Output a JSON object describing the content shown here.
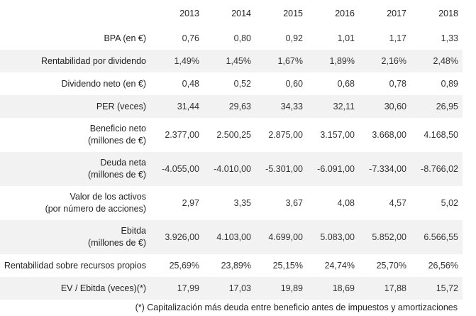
{
  "years": [
    "2013",
    "2014",
    "2015",
    "2016",
    "2017",
    "2018"
  ],
  "rows": [
    {
      "label": [
        "BPA (en €)"
      ],
      "values": [
        "0,76",
        "0,80",
        "0,92",
        "1,01",
        "1,17",
        "1,33"
      ]
    },
    {
      "label": [
        "Rentabilidad por dividendo"
      ],
      "values": [
        "1,49%",
        "1,45%",
        "1,67%",
        "1,89%",
        "2,16%",
        "2,48%"
      ]
    },
    {
      "label": [
        "Dividendo neto (en €)"
      ],
      "values": [
        "0,48",
        "0,52",
        "0,60",
        "0,68",
        "0,78",
        "0,89"
      ]
    },
    {
      "label": [
        "PER (veces)"
      ],
      "values": [
        "31,44",
        "29,63",
        "34,33",
        "32,11",
        "30,60",
        "26,95"
      ]
    },
    {
      "label": [
        "Beneficio neto",
        "(millones de €)"
      ],
      "values": [
        "2.377,00",
        "2.500,25",
        "2.875,00",
        "3.157,00",
        "3.668,00",
        "4.168,50"
      ]
    },
    {
      "label": [
        "Deuda neta",
        "(millones de €)"
      ],
      "values": [
        "-4.055,00",
        "-4.010,00",
        "-5.301,00",
        "-6.091,00",
        "-7.334,00",
        "-8.766,02"
      ]
    },
    {
      "label": [
        "Valor de los activos",
        "(por número de acciones)"
      ],
      "values": [
        "2,97",
        "3,35",
        "3,67",
        "4,08",
        "4,57",
        "5,02"
      ]
    },
    {
      "label": [
        "Ebitda",
        "(millones de €)"
      ],
      "values": [
        "3.926,00",
        "4.103,00",
        "4.699,00",
        "5.083,00",
        "5.852,00",
        "6.566,55"
      ]
    },
    {
      "label": [
        "Rentabilidad sobre recursos propios"
      ],
      "values": [
        "25,69%",
        "23,89%",
        "25,15%",
        "24,74%",
        "25,70%",
        "26,56%"
      ]
    },
    {
      "label": [
        "EV / Ebitda (veces)(*)"
      ],
      "values": [
        "17,99",
        "17,03",
        "19,89",
        "18,69",
        "17,88",
        "15,72"
      ]
    }
  ],
  "footnote": "(*) Capitalización más deuda entre beneficio antes de impuestos y amortizaciones",
  "colors": {
    "shaded_row": "#f2f2f2",
    "text": "#222222"
  }
}
